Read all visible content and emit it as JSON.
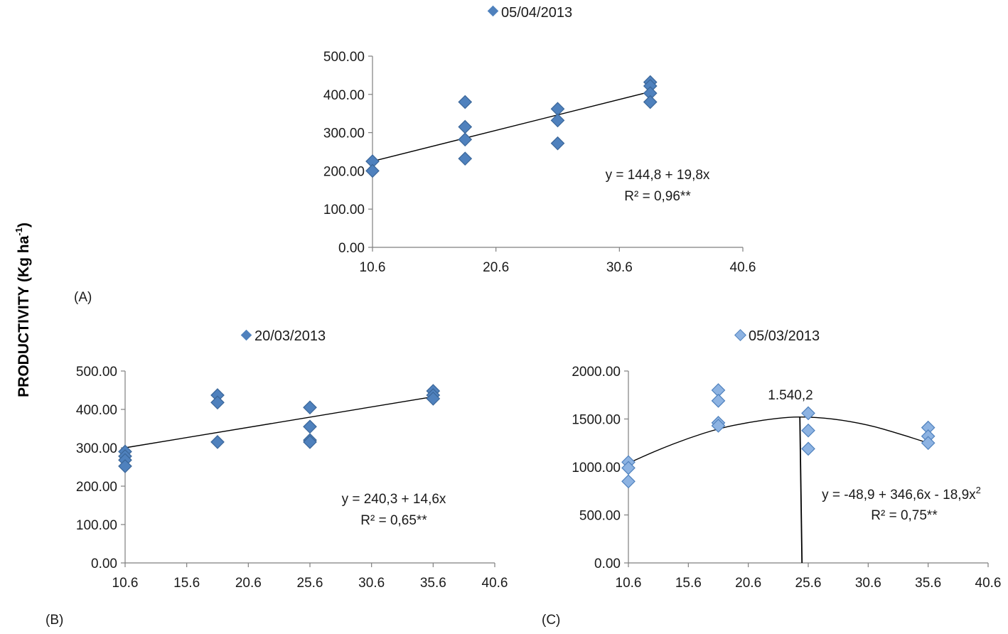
{
  "ylabel": "PRODUCTIVITY (Kg ha",
  "ylabel_sup": "-1",
  "ylabel_end": ")",
  "colors": {
    "marker": "#4F81BD",
    "marker_edge": "#3A6699",
    "marker_c": "#8DB3E2",
    "axis": "#7f7f7f",
    "fit": "#000000"
  },
  "chart_data": [
    {
      "id": "A",
      "type": "scatter",
      "panel_label": "(A)",
      "legend": "05/04/2013",
      "xticks": [
        "10.6",
        "20.6",
        "30.6",
        "40.6"
      ],
      "xlim": [
        10.6,
        40.6
      ],
      "yticks": [
        "0.00",
        "100.00",
        "200.00",
        "300.00",
        "400.00",
        "500.00"
      ],
      "ylim": [
        0,
        500
      ],
      "points": [
        [
          10.6,
          225
        ],
        [
          10.6,
          200
        ],
        [
          18.1,
          380
        ],
        [
          18.1,
          315
        ],
        [
          18.1,
          282
        ],
        [
          18.1,
          232
        ],
        [
          25.6,
          362
        ],
        [
          25.6,
          332
        ],
        [
          25.6,
          272
        ],
        [
          33.1,
          432
        ],
        [
          33.1,
          422
        ],
        [
          33.1,
          403
        ],
        [
          33.1,
          380
        ]
      ],
      "fit": {
        "kind": "linear",
        "x_range": [
          10.6,
          33.1
        ],
        "y": [
          225,
          407
        ]
      },
      "equation": "y = 144,8 + 19,8x",
      "r2": "R² = 0,96**"
    },
    {
      "id": "B",
      "type": "scatter",
      "panel_label": "(B)",
      "legend": "20/03/2013",
      "xticks": [
        "10.6",
        "15.6",
        "20.6",
        "25.6",
        "30.6",
        "35.6",
        "40.6"
      ],
      "xlim": [
        10.6,
        40.6
      ],
      "yticks": [
        "0.00",
        "100.00",
        "200.00",
        "300.00",
        "400.00",
        "500.00"
      ],
      "ylim": [
        0,
        500
      ],
      "points": [
        [
          10.6,
          290
        ],
        [
          10.6,
          278
        ],
        [
          10.6,
          268
        ],
        [
          10.6,
          252
        ],
        [
          18.1,
          437
        ],
        [
          18.1,
          418
        ],
        [
          18.1,
          315
        ],
        [
          25.6,
          405
        ],
        [
          25.6,
          355
        ],
        [
          25.6,
          320
        ],
        [
          25.6,
          315
        ],
        [
          35.6,
          448
        ],
        [
          35.6,
          437
        ],
        [
          35.6,
          428
        ]
      ],
      "fit": {
        "kind": "linear",
        "x_range": [
          10.6,
          35.6
        ],
        "y": [
          300,
          433
        ]
      },
      "equation": "y = 240,3 + 14,6x",
      "r2": "R² = 0,65**"
    },
    {
      "id": "C",
      "type": "scatter",
      "panel_label": "(C)",
      "legend": "05/03/2013",
      "xticks": [
        "10.6",
        "15.6",
        "20.6",
        "25.6",
        "30.6",
        "35.6",
        "40.6"
      ],
      "xlim": [
        10.6,
        40.6
      ],
      "yticks": [
        "0.00",
        "500.00",
        "1000.00",
        "1500.00",
        "2000.00"
      ],
      "ylim": [
        0,
        2000
      ],
      "points": [
        [
          10.6,
          1050
        ],
        [
          10.6,
          990
        ],
        [
          10.6,
          850
        ],
        [
          18.1,
          1800
        ],
        [
          18.1,
          1690
        ],
        [
          18.1,
          1460
        ],
        [
          18.1,
          1430
        ],
        [
          25.6,
          1560
        ],
        [
          25.6,
          1380
        ],
        [
          25.6,
          1190
        ],
        [
          35.6,
          1410
        ],
        [
          35.6,
          1320
        ],
        [
          35.6,
          1250
        ]
      ],
      "fit": {
        "kind": "quadratic",
        "x_range": [
          10.6,
          35.6
        ],
        "points": [
          [
            10.6,
            1040
          ],
          [
            13.1,
            1180
          ],
          [
            15.6,
            1300
          ],
          [
            18.1,
            1400
          ],
          [
            20.6,
            1465
          ],
          [
            23.1,
            1510
          ],
          [
            24.9,
            1525
          ],
          [
            27.6,
            1505
          ],
          [
            30.6,
            1440
          ],
          [
            33.1,
            1350
          ],
          [
            35.6,
            1250
          ]
        ]
      },
      "vline_x": 24.9,
      "peak_label": "1.540,2",
      "equation": "y = -48,9 + 346,6x - 18,9x",
      "equation_sup": "2",
      "r2": "R² = 0,75**"
    }
  ]
}
